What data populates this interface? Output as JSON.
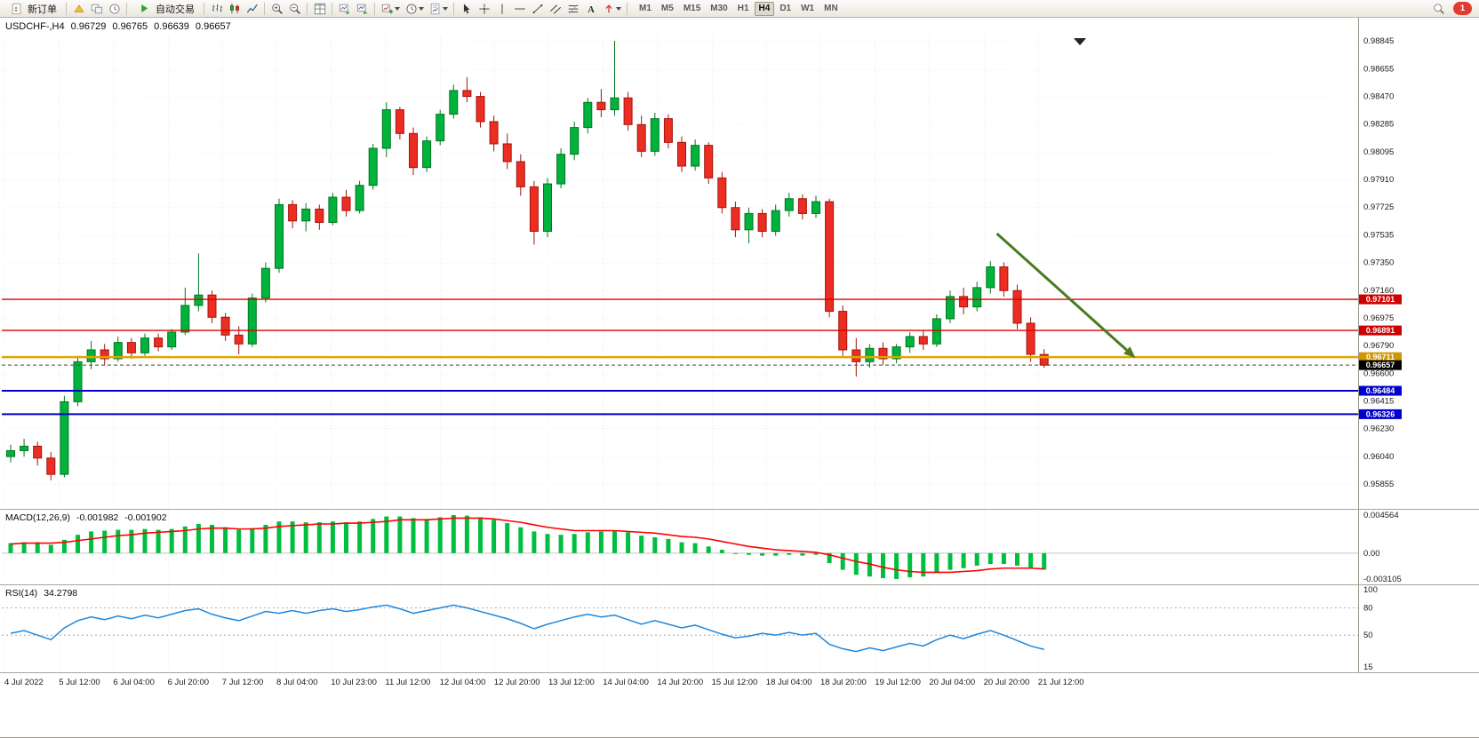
{
  "toolbar": {
    "new_order_label": "新订单",
    "autotrading_label": "自动交易",
    "timeframes": [
      "M1",
      "M5",
      "M15",
      "M30",
      "H1",
      "H4",
      "D1",
      "W1",
      "MN"
    ],
    "active_timeframe": "H4",
    "notification_count": "1"
  },
  "chart": {
    "symbol_info": "USDCHF-,H4",
    "open": "0.96729",
    "high": "0.96765",
    "low": "0.96639",
    "close": "0.96657"
  },
  "indicators": {
    "macd_label": "MACD(12,26,9)",
    "macd_main_value": "-0.001982",
    "macd_signal_value": "-0.001902",
    "rsi_label": "RSI(14)",
    "rsi_value": "34.2798"
  },
  "chart_data": {
    "type": "candlestick",
    "symbol": "USDCHF",
    "timeframe": "H4",
    "price_range": [
      0.95855,
      0.98845
    ],
    "price_axis_ticks": [
      "0.98845",
      "0.98655",
      "0.98470",
      "0.98285",
      "0.98095",
      "0.97910",
      "0.97725",
      "0.97535",
      "0.97350",
      "0.97160",
      "0.96975",
      "0.96790",
      "0.96600",
      "0.96415",
      "0.96230",
      "0.96040",
      "0.95855"
    ],
    "time_labels": [
      "4 Jul 2022",
      "5 Jul 12:00",
      "6 Jul 04:00",
      "6 Jul 20:00",
      "7 Jul 12:00",
      "8 Jul 04:00",
      "10 Jul 23:00",
      "11 Jul 12:00",
      "12 Jul 04:00",
      "12 Jul 20:00",
      "13 Jul 12:00",
      "14 Jul 04:00",
      "14 Jul 20:00",
      "15 Jul 12:00",
      "18 Jul 04:00",
      "18 Jul 20:00",
      "19 Jul 12:00",
      "20 Jul 04:00",
      "20 Jul 20:00",
      "21 Jul 12:00"
    ],
    "candles": [
      [
        0.9604,
        0.9612,
        0.96,
        0.9608
      ],
      [
        0.9608,
        0.9616,
        0.9604,
        0.9611
      ],
      [
        0.9611,
        0.9614,
        0.9598,
        0.9603
      ],
      [
        0.9603,
        0.9607,
        0.9588,
        0.9592
      ],
      [
        0.9592,
        0.9645,
        0.959,
        0.9641
      ],
      [
        0.9641,
        0.9672,
        0.9638,
        0.9668
      ],
      [
        0.9668,
        0.9682,
        0.9663,
        0.9676
      ],
      [
        0.9676,
        0.968,
        0.9666,
        0.967
      ],
      [
        0.967,
        0.9685,
        0.9668,
        0.9681
      ],
      [
        0.9681,
        0.9684,
        0.967,
        0.9674
      ],
      [
        0.9674,
        0.9687,
        0.9672,
        0.9684
      ],
      [
        0.9684,
        0.9687,
        0.9675,
        0.9678
      ],
      [
        0.9678,
        0.969,
        0.9676,
        0.9688
      ],
      [
        0.9688,
        0.9718,
        0.9686,
        0.9706
      ],
      [
        0.9706,
        0.9741,
        0.9702,
        0.9713
      ],
      [
        0.9713,
        0.9716,
        0.9694,
        0.9698
      ],
      [
        0.9698,
        0.9701,
        0.9682,
        0.9686
      ],
      [
        0.9686,
        0.9692,
        0.9673,
        0.968
      ],
      [
        0.968,
        0.9714,
        0.9678,
        0.9711
      ],
      [
        0.9711,
        0.9735,
        0.9708,
        0.9731
      ],
      [
        0.9731,
        0.9778,
        0.9728,
        0.9774
      ],
      [
        0.9774,
        0.9777,
        0.9758,
        0.9763
      ],
      [
        0.9763,
        0.9775,
        0.9756,
        0.9771
      ],
      [
        0.9771,
        0.9774,
        0.9757,
        0.9762
      ],
      [
        0.9762,
        0.9782,
        0.976,
        0.9779
      ],
      [
        0.9779,
        0.9784,
        0.9766,
        0.977
      ],
      [
        0.977,
        0.979,
        0.9768,
        0.9787
      ],
      [
        0.9787,
        0.9815,
        0.9784,
        0.9812
      ],
      [
        0.9812,
        0.9843,
        0.9806,
        0.9838
      ],
      [
        0.9838,
        0.984,
        0.9818,
        0.9822
      ],
      [
        0.9822,
        0.9826,
        0.9794,
        0.9799
      ],
      [
        0.9799,
        0.982,
        0.9796,
        0.9817
      ],
      [
        0.9817,
        0.9838,
        0.9814,
        0.9835
      ],
      [
        0.9835,
        0.9855,
        0.9832,
        0.9851
      ],
      [
        0.9851,
        0.986,
        0.9843,
        0.9847
      ],
      [
        0.9847,
        0.985,
        0.9826,
        0.983
      ],
      [
        0.983,
        0.9834,
        0.981,
        0.9815
      ],
      [
        0.9815,
        0.9822,
        0.9798,
        0.9803
      ],
      [
        0.9803,
        0.9808,
        0.978,
        0.9786
      ],
      [
        0.9786,
        0.979,
        0.9747,
        0.9756
      ],
      [
        0.9756,
        0.9792,
        0.9752,
        0.9788
      ],
      [
        0.9788,
        0.9812,
        0.9785,
        0.9808
      ],
      [
        0.9808,
        0.983,
        0.9804,
        0.9826
      ],
      [
        0.9826,
        0.9846,
        0.9822,
        0.9843
      ],
      [
        0.9843,
        0.9852,
        0.9833,
        0.9838
      ],
      [
        0.9838,
        0.98845,
        0.9834,
        0.9846
      ],
      [
        0.9846,
        0.985,
        0.9824,
        0.9828
      ],
      [
        0.9828,
        0.9834,
        0.9806,
        0.981
      ],
      [
        0.981,
        0.9836,
        0.9807,
        0.9832
      ],
      [
        0.9832,
        0.9835,
        0.9812,
        0.9816
      ],
      [
        0.9816,
        0.982,
        0.9796,
        0.98
      ],
      [
        0.98,
        0.9818,
        0.9797,
        0.9814
      ],
      [
        0.9814,
        0.9816,
        0.9788,
        0.9792
      ],
      [
        0.9792,
        0.9796,
        0.9768,
        0.9772
      ],
      [
        0.9772,
        0.9776,
        0.9752,
        0.9757
      ],
      [
        0.9757,
        0.9772,
        0.9748,
        0.9768
      ],
      [
        0.9768,
        0.9771,
        0.9752,
        0.9756
      ],
      [
        0.9756,
        0.9774,
        0.9753,
        0.977
      ],
      [
        0.977,
        0.9782,
        0.9766,
        0.9778
      ],
      [
        0.9778,
        0.9781,
        0.9764,
        0.9768
      ],
      [
        0.9768,
        0.978,
        0.9765,
        0.9776
      ],
      [
        0.9776,
        0.9778,
        0.9698,
        0.9702
      ],
      [
        0.9702,
        0.9706,
        0.9672,
        0.9676
      ],
      [
        0.9676,
        0.9684,
        0.9658,
        0.9668
      ],
      [
        0.9668,
        0.968,
        0.9664,
        0.9677
      ],
      [
        0.9677,
        0.9681,
        0.9666,
        0.967
      ],
      [
        0.967,
        0.968,
        0.9667,
        0.9678
      ],
      [
        0.9678,
        0.9688,
        0.9674,
        0.9685
      ],
      [
        0.9685,
        0.9689,
        0.9676,
        0.968
      ],
      [
        0.968,
        0.97,
        0.9678,
        0.9697
      ],
      [
        0.9697,
        0.9716,
        0.9694,
        0.9712
      ],
      [
        0.9712,
        0.9718,
        0.97,
        0.9705
      ],
      [
        0.9705,
        0.9722,
        0.9702,
        0.9718
      ],
      [
        0.9718,
        0.9736,
        0.9714,
        0.9732
      ],
      [
        0.9732,
        0.9735,
        0.9712,
        0.9716
      ],
      [
        0.9716,
        0.972,
        0.969,
        0.9694
      ],
      [
        0.9694,
        0.9698,
        0.9668,
        0.9673
      ],
      [
        0.96729,
        0.96765,
        0.96639,
        0.96657
      ]
    ],
    "hlines": [
      {
        "price": 0.97101,
        "label": "0.97101",
        "color": "#dd0000",
        "badge_color": "#cc0000",
        "width": 1.4
      },
      {
        "price": 0.96891,
        "label": "0.96891",
        "color": "#dd0000",
        "badge_color": "#cc0000",
        "width": 1.4
      },
      {
        "price": 0.96711,
        "label": "0.96711",
        "color": "#e0a400",
        "badge_color": "#cf9700",
        "width": 2.5
      },
      {
        "price": 0.96484,
        "label": "0.96484",
        "color": "#0000cc",
        "badge_color": "#0000cc",
        "width": 2
      },
      {
        "price": 0.96326,
        "label": "0.96326",
        "color": "#0000cc",
        "badge_color": "#0000cc",
        "width": 2
      }
    ],
    "current_price": {
      "price": 0.96657,
      "label": "0.96657",
      "line_color": "#444444",
      "badge_color": "#000000"
    },
    "trend_arrow": {
      "x1_frac": 0.734,
      "price1": 0.97545,
      "x2_frac": 0.836,
      "price2": 0.96706,
      "color": "#4a7a1e"
    },
    "colors": {
      "up": "#00b33c",
      "up_stroke": "#03761f",
      "down": "#ec2d22",
      "down_stroke": "#a3140d",
      "macd_hist": "#00bf40",
      "macd_signal": "#ff0000",
      "rsi_line": "#1e87dd",
      "grid": "#ededed"
    },
    "macd": {
      "max": 0.004564,
      "min": -0.003105,
      "axis_labels": [
        "0.004564",
        "0.00",
        "-0.003105"
      ],
      "histogram": [
        0.0012,
        0.0013,
        0.0013,
        0.001,
        0.0016,
        0.0022,
        0.0026,
        0.0027,
        0.0028,
        0.0028,
        0.0029,
        0.0028,
        0.0029,
        0.0032,
        0.0035,
        0.0034,
        0.0031,
        0.0028,
        0.003,
        0.0034,
        0.0038,
        0.0038,
        0.0037,
        0.0037,
        0.0038,
        0.0037,
        0.0038,
        0.0041,
        0.0044,
        0.0044,
        0.0042,
        0.0041,
        0.0043,
        0.004564,
        0.0045,
        0.0043,
        0.004,
        0.0036,
        0.0031,
        0.0026,
        0.0023,
        0.0022,
        0.0023,
        0.0025,
        0.0026,
        0.0027,
        0.0025,
        0.0021,
        0.0019,
        0.0017,
        0.0013,
        0.0012,
        0.0008,
        0.0004,
        0.0,
        -0.0002,
        -0.0003,
        -0.0003,
        -0.0002,
        -0.0003,
        -0.0002,
        -0.0012,
        -0.002,
        -0.0026,
        -0.0028,
        -0.003,
        -0.0031,
        -0.0029,
        -0.0028,
        -0.0024,
        -0.002,
        -0.0018,
        -0.0015,
        -0.0013,
        -0.0013,
        -0.0015,
        -0.0018,
        -0.001982
      ],
      "signal": [
        0.0011,
        0.0012,
        0.0012,
        0.0012,
        0.0013,
        0.0015,
        0.0017,
        0.0019,
        0.0021,
        0.0022,
        0.0024,
        0.0025,
        0.0026,
        0.0027,
        0.0029,
        0.003,
        0.003,
        0.0029,
        0.0029,
        0.003,
        0.0032,
        0.0033,
        0.0034,
        0.0035,
        0.0035,
        0.0036,
        0.0036,
        0.0037,
        0.0038,
        0.004,
        0.004,
        0.004,
        0.0041,
        0.0042,
        0.0042,
        0.0042,
        0.0041,
        0.0039,
        0.0037,
        0.0034,
        0.0031,
        0.0029,
        0.0027,
        0.0027,
        0.0027,
        0.0027,
        0.0026,
        0.0025,
        0.0024,
        0.0022,
        0.002,
        0.0019,
        0.0017,
        0.0014,
        0.0011,
        0.0008,
        0.0006,
        0.0004,
        0.0003,
        0.0002,
        0.0001,
        -0.0002,
        -0.0006,
        -0.001,
        -0.0013,
        -0.0017,
        -0.002,
        -0.0022,
        -0.0023,
        -0.0023,
        -0.0023,
        -0.0022,
        -0.0021,
        -0.0019,
        -0.0018,
        -0.0018,
        -0.0018,
        -0.001902
      ]
    },
    "rsi": {
      "range": [
        15,
        100
      ],
      "levels": [
        80,
        50
      ],
      "axis_labels": [
        {
          "v": 100,
          "t": "100"
        },
        {
          "v": 80,
          "t": "80"
        },
        {
          "v": 50,
          "t": "50"
        },
        {
          "v": 15,
          "t": "15"
        }
      ],
      "values": [
        52,
        55,
        50,
        45,
        58,
        66,
        70,
        67,
        71,
        68,
        72,
        69,
        73,
        77,
        79,
        73,
        69,
        66,
        71,
        76,
        74,
        77,
        74,
        77,
        79,
        76,
        78,
        81,
        83,
        79,
        74,
        77,
        80,
        83,
        80,
        76,
        72,
        68,
        63,
        57,
        62,
        66,
        70,
        73,
        70,
        72,
        67,
        62,
        66,
        62,
        58,
        61,
        56,
        51,
        47,
        49,
        52,
        50,
        53,
        50,
        52,
        40,
        35,
        32,
        36,
        33,
        37,
        41,
        38,
        45,
        50,
        46,
        51,
        55,
        50,
        44,
        38,
        34.2798
      ]
    }
  }
}
